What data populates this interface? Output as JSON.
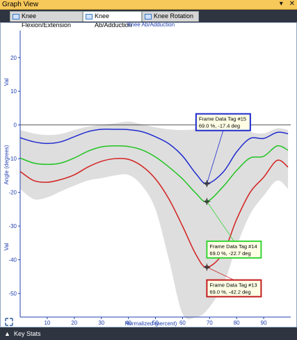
{
  "window": {
    "title": "Graph View",
    "pin_icon": "pin-icon",
    "close_icon": "close-icon"
  },
  "tabs": [
    {
      "label": "Knee Flexion/Extension",
      "active": false
    },
    {
      "label": "Knee Ab/Adduction",
      "active": true
    },
    {
      "label": "Knee Rotation",
      "active": false
    }
  ],
  "status_bar": {
    "label": "Key Stats",
    "icon": "triangle-up-icon"
  },
  "chart_data": {
    "type": "line",
    "title": "Knee Ab/Adduction",
    "xlabel": "Normalized (percent)",
    "ylabel": "Angle (degrees)",
    "ylabel_val_top": "Val",
    "ylabel_val_bottom": "Val",
    "xlim": [
      0,
      100
    ],
    "ylim": [
      -57,
      28
    ],
    "xticks": [
      10,
      20,
      30,
      40,
      50,
      60,
      70,
      80,
      90
    ],
    "yticks": [
      20,
      10,
      0,
      -10,
      -20,
      -30,
      -40,
      -50
    ],
    "grid": false,
    "zero_line": true,
    "series": [
      {
        "color": "#1f2bd0",
        "x": [
          0,
          5,
          10,
          15,
          20,
          25,
          30,
          35,
          40,
          45,
          50,
          55,
          60,
          65,
          69,
          75,
          80,
          85,
          90,
          95,
          99
        ],
        "y": [
          -3.8,
          -5.0,
          -5.5,
          -5.0,
          -3.5,
          -2.0,
          -1.3,
          -1.3,
          -1.4,
          -2.0,
          -3.5,
          -5.6,
          -9.2,
          -14.5,
          -17.4,
          -14.0,
          -8.0,
          -4.0,
          -4.0,
          -2.2,
          -2.6
        ]
      },
      {
        "color": "#1fc41f",
        "x": [
          0,
          5,
          10,
          15,
          20,
          25,
          30,
          35,
          40,
          45,
          50,
          55,
          60,
          65,
          69,
          75,
          80,
          85,
          90,
          95,
          99
        ],
        "y": [
          -9.8,
          -11.3,
          -11.7,
          -11.3,
          -9.8,
          -7.8,
          -6.5,
          -6.2,
          -6.4,
          -7.4,
          -9.5,
          -12.5,
          -16.0,
          -20.3,
          -22.7,
          -18.3,
          -13.5,
          -9.8,
          -9.3,
          -6.2,
          -7.5
        ]
      },
      {
        "color": "#d42020",
        "x": [
          0,
          5,
          10,
          15,
          20,
          25,
          30,
          35,
          40,
          45,
          50,
          55,
          60,
          65,
          69,
          75,
          80,
          85,
          90,
          95,
          99
        ],
        "y": [
          -13.8,
          -16.5,
          -17.0,
          -16.2,
          -14.8,
          -12.5,
          -10.8,
          -10.0,
          -10.2,
          -12.2,
          -16.0,
          -22.0,
          -30.0,
          -38.5,
          -42.2,
          -38.0,
          -28.0,
          -20.0,
          -15.5,
          -10.5,
          -12.5
        ]
      }
    ],
    "band": {
      "upper": [
        -1.5,
        -2.5,
        -3.0,
        -2.7,
        -1.5,
        -0.5,
        0.0,
        0.5,
        1.0,
        0.2,
        -0.7,
        -1.3,
        -1.5,
        -1.2,
        0.5,
        1.5,
        0.5,
        -2.0,
        -2.5,
        -1.0,
        -1.5
      ],
      "lower": [
        -19.0,
        -22.0,
        -21.5,
        -19.7,
        -18.0,
        -16.5,
        -15.8,
        -15.0,
        -14.8,
        -18.0,
        -25.0,
        -40.0,
        -56.0,
        -57.0,
        -55.0,
        -47.5,
        -36.0,
        -26.5,
        -21.0,
        -16.5,
        -19.0
      ]
    },
    "annotations": [
      {
        "series": 0,
        "x": 69,
        "y": -17.4,
        "title": "Frame Data Tag #15",
        "value": "69.0 %, -17.4 deg",
        "border": "#1f2bd0",
        "box_x": 65,
        "box_y": 3.3
      },
      {
        "series": 1,
        "x": 69,
        "y": -22.7,
        "title": "Frame Data Tag #14",
        "value": "69.0 %, -22.7 deg",
        "border": "#36d536",
        "box_x": 69,
        "box_y": -34.5
      },
      {
        "series": 2,
        "x": 69,
        "y": -42.2,
        "title": "Frame Data Tag #13",
        "value": "69.0 %, -42.2 deg",
        "border": "#c31d1d",
        "box_x": 69,
        "box_y": -46.0
      }
    ]
  }
}
